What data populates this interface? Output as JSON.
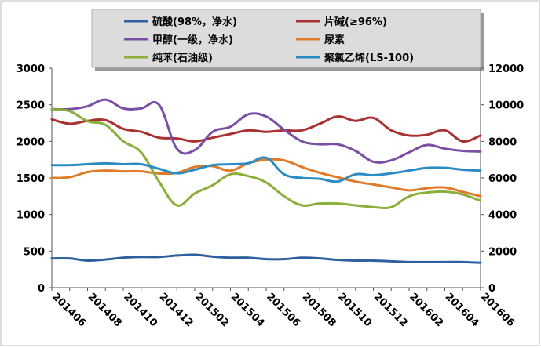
{
  "chart_data": {
    "type": "line",
    "x": [
      "201406",
      "201407",
      "201408",
      "201409",
      "201410",
      "201411",
      "201412",
      "201501",
      "201502",
      "201503",
      "201504",
      "201505",
      "201506",
      "201507",
      "201508",
      "201509",
      "201510",
      "201511",
      "201512",
      "201601",
      "201602",
      "201603",
      "201604",
      "201605",
      "201606"
    ],
    "x_tick_labels": [
      "201406",
      "201408",
      "201410",
      "201412",
      "201502",
      "201504",
      "201506",
      "201508",
      "201510",
      "201512",
      "201602",
      "201604",
      "201606"
    ],
    "y_left": {
      "ylim": [
        0,
        3000
      ],
      "ticks": [
        "0",
        "500",
        "1000",
        "1500",
        "2000",
        "2500",
        "3000"
      ]
    },
    "y_right": {
      "ylim": [
        0,
        12000
      ],
      "ticks": [
        "0",
        "2000",
        "4000",
        "6000",
        "8000",
        "10000",
        "12000"
      ]
    },
    "grid": false,
    "legend_position": "top",
    "series": [
      {
        "name": "硫酸(98%，净水)",
        "color": "#2e5f9e",
        "axis": "left",
        "values": [
          400,
          400,
          370,
          385,
          410,
          420,
          420,
          440,
          450,
          425,
          410,
          410,
          390,
          390,
          410,
          400,
          380,
          370,
          370,
          360,
          350,
          350,
          350,
          350,
          340
        ]
      },
      {
        "name": "片碱(≥96%)",
        "color": "#a83232",
        "axis": "left",
        "values": [
          2300,
          2240,
          2280,
          2290,
          2170,
          2130,
          2050,
          2040,
          2000,
          2050,
          2100,
          2150,
          2130,
          2150,
          2150,
          2240,
          2340,
          2280,
          2320,
          2150,
          2080,
          2090,
          2150,
          2000,
          2080
        ]
      },
      {
        "name": "甲醇(一级，净水)",
        "color": "#7a4fa3",
        "axis": "left",
        "values": [
          2440,
          2440,
          2480,
          2570,
          2450,
          2450,
          2500,
          1900,
          1880,
          2130,
          2200,
          2370,
          2340,
          2160,
          2000,
          1960,
          1960,
          1870,
          1720,
          1740,
          1850,
          1950,
          1900,
          1870,
          1860
        ]
      },
      {
        "name": "尿素",
        "color": "#e07b2a",
        "axis": "left",
        "values": [
          1500,
          1510,
          1580,
          1600,
          1590,
          1590,
          1560,
          1570,
          1650,
          1660,
          1600,
          1700,
          1750,
          1740,
          1650,
          1570,
          1510,
          1450,
          1410,
          1370,
          1330,
          1360,
          1370,
          1310,
          1250
        ]
      },
      {
        "name": "纯苯(石油级)",
        "color": "#8aaf3a",
        "axis": "right",
        "values": [
          9750,
          9650,
          9100,
          8900,
          8000,
          7400,
          5800,
          4500,
          5150,
          5600,
          6200,
          6100,
          5750,
          5000,
          4500,
          4600,
          4600,
          4500,
          4400,
          4400,
          5000,
          5200,
          5250,
          5100,
          4750
        ]
      },
      {
        "name": "聚氯乙烯(LS-100)",
        "color": "#2b8cc4",
        "axis": "right",
        "values": [
          6700,
          6700,
          6750,
          6800,
          6750,
          6750,
          6500,
          6250,
          6450,
          6700,
          6750,
          6800,
          7100,
          6200,
          6000,
          5950,
          5800,
          6200,
          6150,
          6250,
          6400,
          6550,
          6550,
          6450,
          6400
        ]
      }
    ]
  }
}
